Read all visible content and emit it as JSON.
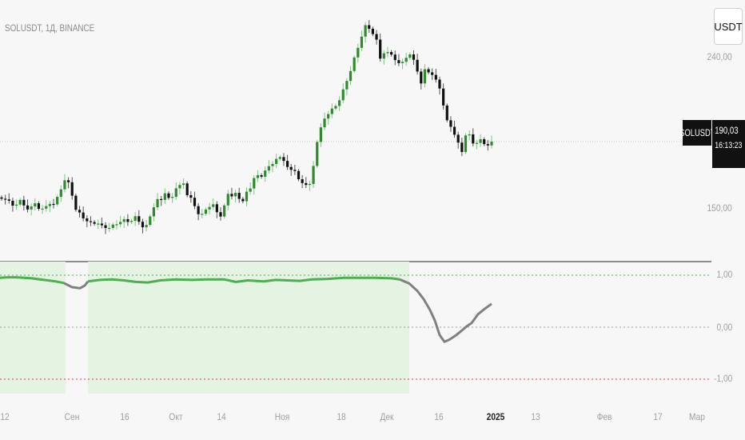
{
  "header": {
    "symbol_info": "SOLUSDT, 1Д, BINANCE",
    "currency_button": "USDT"
  },
  "price_axis": {
    "labels": [
      "240,00",
      "150,00"
    ]
  },
  "last_price_tag": {
    "symbol": "SOLUSDT",
    "price": "190,03",
    "countdown": "16:13:23"
  },
  "indicator_axis": {
    "labels": [
      "1,00",
      "0,00",
      "-1,00"
    ]
  },
  "time_axis": {
    "labels": [
      "12",
      "Сен",
      "16",
      "Окт",
      "14",
      "Ноя",
      "18",
      "Дек",
      "16",
      "2025",
      "13",
      "Фев",
      "17",
      "Мар"
    ]
  },
  "colors": {
    "up_candle": "#2e8b2e",
    "down_candle": "#111111",
    "wick_up": "#7fc77f",
    "indicator_positive": "#4caf50",
    "indicator_neutral": "#808080",
    "indicator_fill": "#e4f3e2",
    "upper_level": "#4caf50",
    "lower_level": "#e53935",
    "zero_level": "#9e9e9e"
  },
  "chart_data": [
    {
      "type": "candlestick",
      "title": "SOLUSDT, 1Д, BINANCE",
      "y_ticks": [
        150,
        240
      ],
      "last_price": 190.03,
      "series": [
        {
          "name": "SOLUSDT",
          "close_path": [
            156.0,
            155.6,
            154.8,
            151.9,
            152.5,
            155.3,
            152.0,
            149.6,
            151.4,
            153.3,
            150.0,
            150.1,
            151.6,
            152.9,
            152.6,
            157.1,
            161.6,
            167.0,
            165.8,
            157.8,
            149.4,
            147.8,
            144.3,
            142.6,
            142.1,
            141.1,
            141.2,
            140.2,
            138.6,
            138.6,
            140.6,
            140.8,
            142.2,
            143.8,
            142.2,
            142.8,
            145.6,
            142.3,
            139.0,
            140.4,
            145.5,
            150.9,
            155.8,
            155.3,
            159.2,
            156.5,
            157.1,
            162.2,
            164.2,
            165.1,
            158.1,
            156.6,
            151.6,
            146.8,
            147.0,
            149.6,
            151.1,
            152.7,
            148.0,
            145.4,
            152.0,
            158.9,
            157.4,
            159.5,
            155.9,
            154.5,
            160.2,
            162.1,
            168.3,
            170.0,
            169.1,
            172.8,
            175.4,
            176.7,
            179.7,
            180.8,
            178.5,
            174.9,
            173.2,
            172.5,
            167.6,
            165.3,
            164.2,
            164.8,
            175.5,
            189.8,
            198.5,
            203.7,
            206.4,
            209.7,
            211.2,
            214.6,
            221.1,
            226.1,
            232.0,
            240.1,
            245.8,
            252.5,
            259.3,
            257.2,
            254.0,
            250.7,
            239.4,
            242.6,
            243.3,
            241.8,
            238.5,
            236.7,
            237.5,
            239.9,
            241.9,
            238.7,
            231.7,
            224.6,
            233.1,
            231.2,
            229.7,
            226.9,
            221.6,
            211.5,
            202.7,
            198.8,
            194.1,
            189.4,
            183.8,
            193.7,
            194.3,
            188.9,
            189.2,
            191.4,
            188.5,
            187.7,
            190.0
          ]
        },
        {
          "name": "indicator",
          "y_ticks": [
            1.0,
            0.0,
            -1.0
          ]
        }
      ]
    }
  ]
}
